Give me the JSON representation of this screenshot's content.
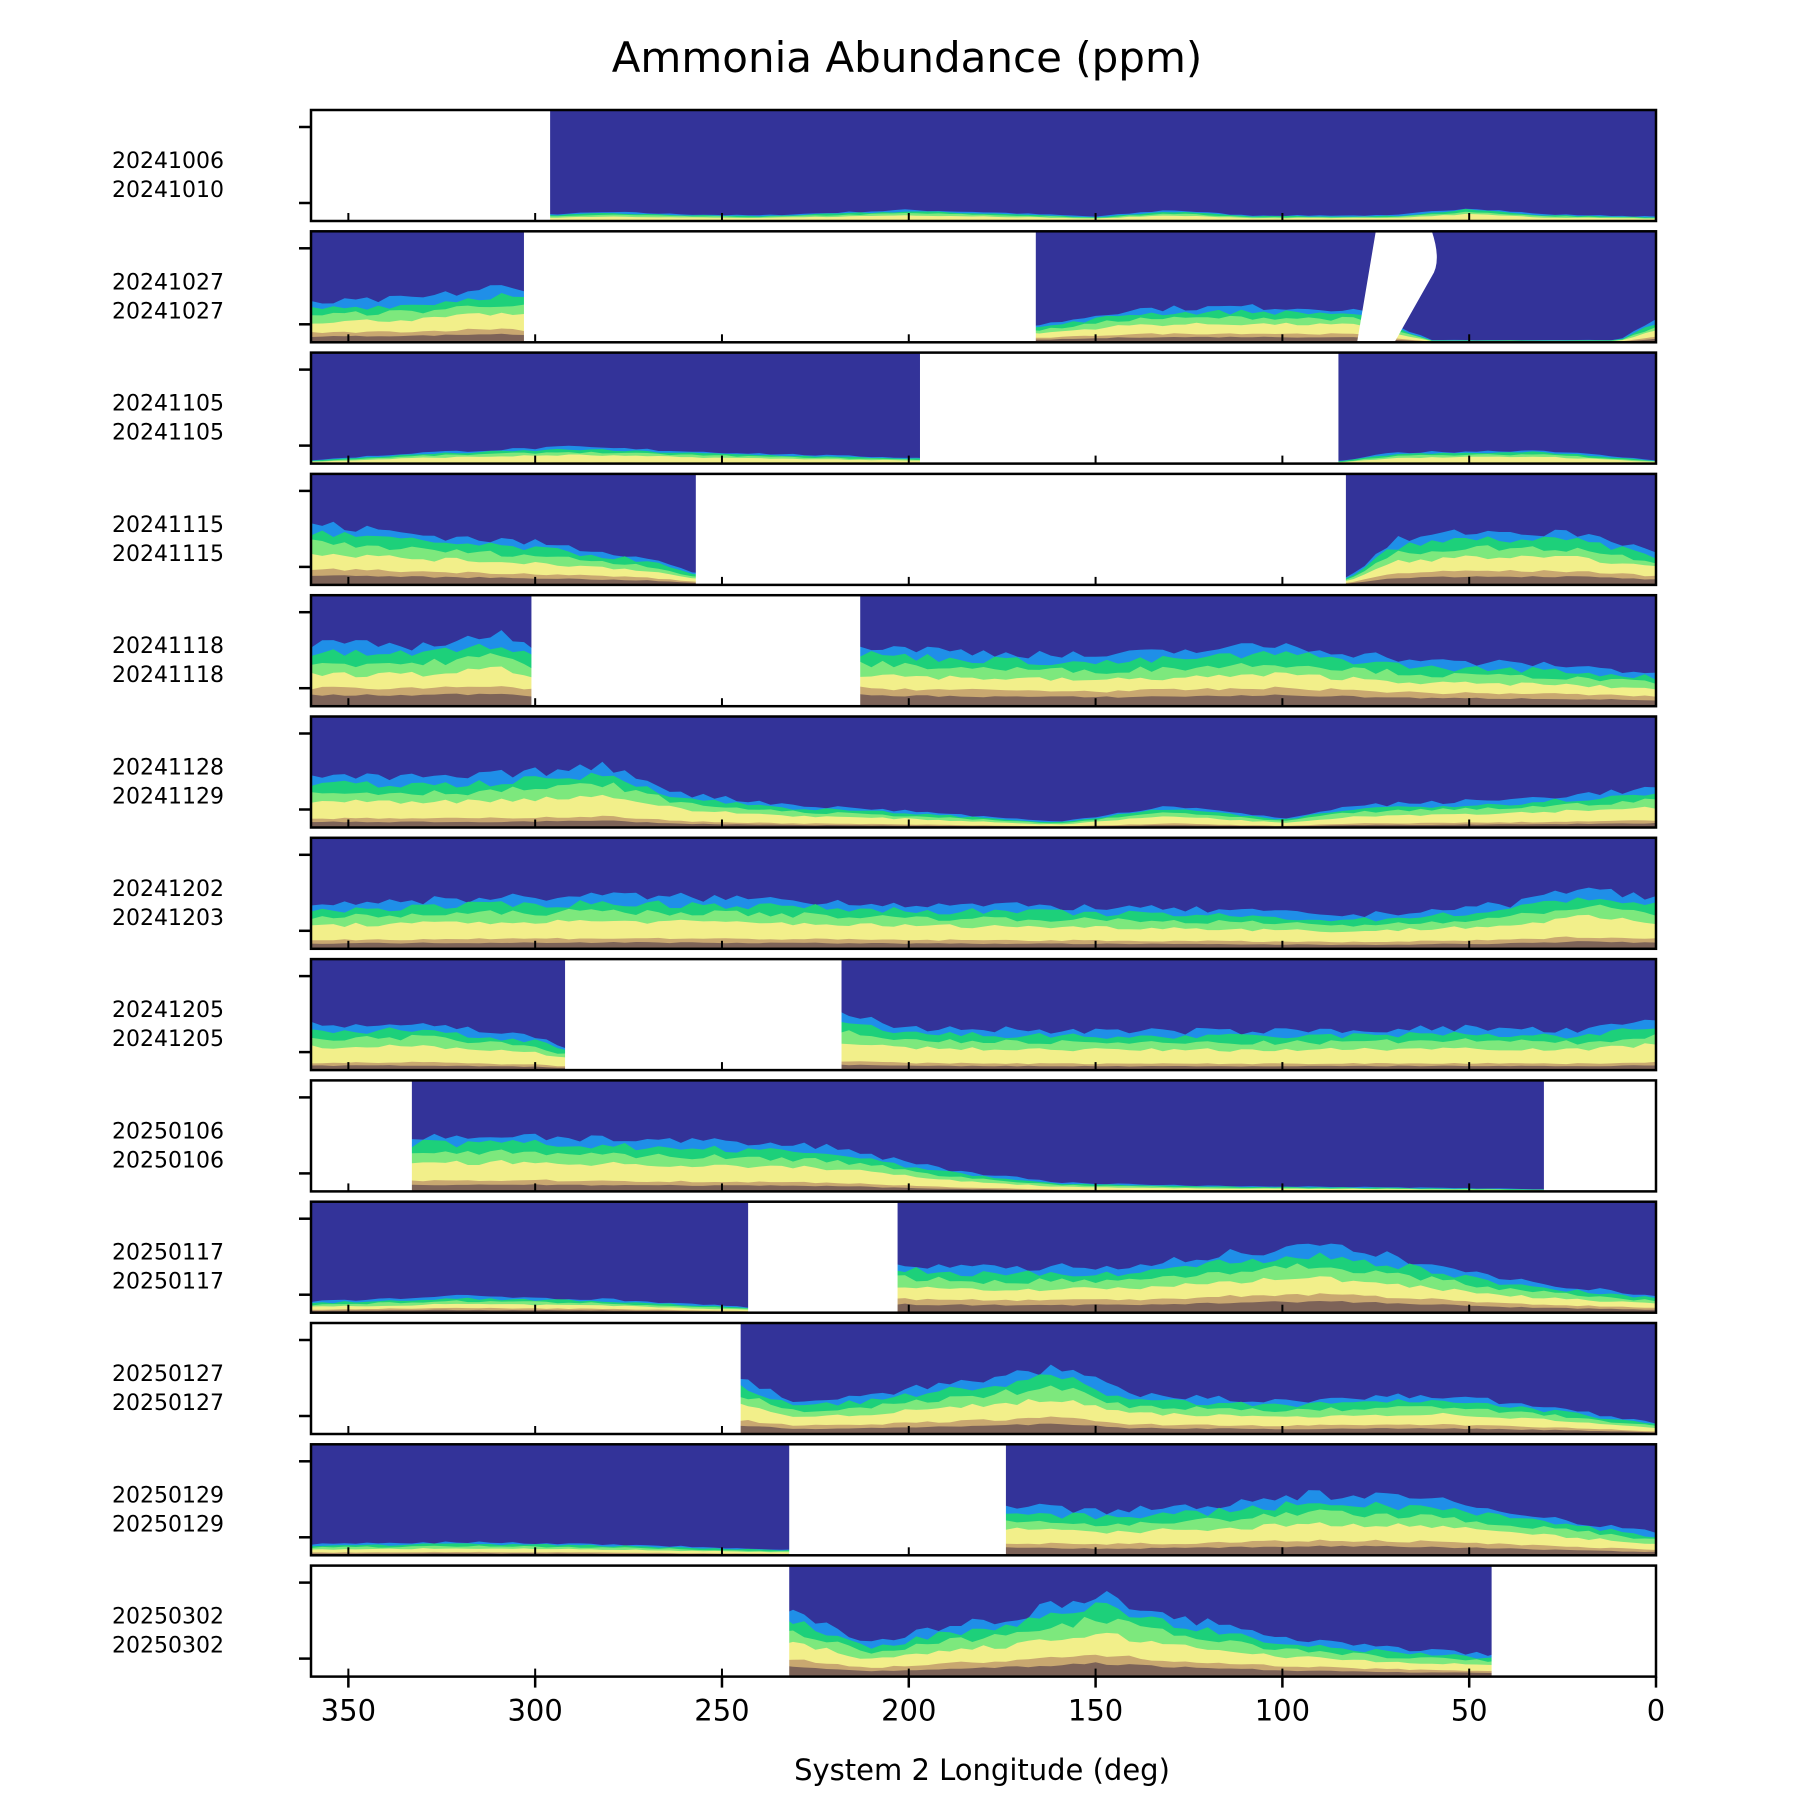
{
  "chart_data": {
    "type": "heatmap",
    "title": "Ammonia Abundance (ppm)",
    "xlabel": "System 2 Longitude (deg)",
    "xlim": [
      360,
      0
    ],
    "x_ticks": [
      350,
      300,
      250,
      200,
      150,
      100,
      50,
      0
    ],
    "x_tick_labels": [
      "350",
      "300",
      "250",
      "200",
      "150",
      "100",
      "50",
      "0"
    ],
    "colormap": [
      "#333399",
      "#1f8fe8",
      "#1dd07a",
      "#7de87d",
      "#f2ef8a",
      "#c9a870",
      "#7d6358",
      "#ffffff"
    ],
    "rows": [
      {
        "label_top": "20241006",
        "label_bottom": "20241010",
        "missing": [
          [
            360,
            296
          ]
        ],
        "gaps": [],
        "profile": [
          [
            296,
            0.06
          ],
          [
            280,
            0.08
          ],
          [
            260,
            0.06
          ],
          [
            240,
            0.05
          ],
          [
            200,
            0.1
          ],
          [
            180,
            0.08
          ],
          [
            150,
            0.04
          ],
          [
            130,
            0.1
          ],
          [
            110,
            0.05
          ],
          [
            70,
            0.05
          ],
          [
            50,
            0.12
          ],
          [
            30,
            0.06
          ],
          [
            0,
            0.04
          ]
        ],
        "intensity": 0.25
      },
      {
        "label_top": "20241027",
        "label_bottom": "20241027",
        "missing": [
          [
            303,
            166
          ]
        ],
        "gaps": [
          [
            80,
            60
          ]
        ],
        "profile": [
          [
            360,
            0.35
          ],
          [
            330,
            0.4
          ],
          [
            310,
            0.5
          ],
          [
            303,
            0.45
          ],
          [
            166,
            0.15
          ],
          [
            140,
            0.3
          ],
          [
            110,
            0.32
          ],
          [
            81,
            0.3
          ],
          [
            60,
            0.02
          ],
          [
            10,
            0.02
          ],
          [
            0,
            0.2
          ]
        ],
        "intensity": 0.75
      },
      {
        "label_top": "20241105",
        "label_bottom": "20241105",
        "missing": [
          [
            197,
            85
          ]
        ],
        "gaps": [],
        "profile": [
          [
            360,
            0.03
          ],
          [
            330,
            0.1
          ],
          [
            290,
            0.15
          ],
          [
            250,
            0.1
          ],
          [
            197,
            0.05
          ],
          [
            85,
            0.02
          ],
          [
            70,
            0.1
          ],
          [
            30,
            0.12
          ],
          [
            0,
            0.03
          ]
        ],
        "intensity": 0.22
      },
      {
        "label_top": "20241115",
        "label_bottom": "20241115",
        "missing": [
          [
            257,
            83
          ]
        ],
        "gaps": [],
        "profile": [
          [
            360,
            0.55
          ],
          [
            330,
            0.45
          ],
          [
            300,
            0.38
          ],
          [
            270,
            0.25
          ],
          [
            257,
            0.1
          ],
          [
            83,
            0.05
          ],
          [
            70,
            0.4
          ],
          [
            50,
            0.48
          ],
          [
            20,
            0.46
          ],
          [
            0,
            0.3
          ]
        ],
        "intensity": 0.8
      },
      {
        "label_top": "20241118",
        "label_bottom": "20241118",
        "missing": [
          [
            301,
            213
          ]
        ],
        "gaps": [],
        "profile": [
          [
            360,
            0.55
          ],
          [
            330,
            0.55
          ],
          [
            310,
            0.65
          ],
          [
            301,
            0.5
          ],
          [
            213,
            0.55
          ],
          [
            190,
            0.5
          ],
          [
            150,
            0.45
          ],
          [
            100,
            0.55
          ],
          [
            60,
            0.4
          ],
          [
            30,
            0.38
          ],
          [
            0,
            0.3
          ]
        ],
        "intensity": 0.9
      },
      {
        "label_top": "20241128",
        "label_bottom": "20241129",
        "missing": [],
        "gaps": [],
        "profile": [
          [
            360,
            0.45
          ],
          [
            320,
            0.45
          ],
          [
            280,
            0.55
          ],
          [
            260,
            0.3
          ],
          [
            230,
            0.2
          ],
          [
            200,
            0.15
          ],
          [
            160,
            0.05
          ],
          [
            130,
            0.2
          ],
          [
            100,
            0.08
          ],
          [
            80,
            0.2
          ],
          [
            40,
            0.25
          ],
          [
            0,
            0.35
          ]
        ],
        "intensity": 0.55
      },
      {
        "label_top": "20241202",
        "label_bottom": "20241203",
        "missing": [],
        "gaps": [],
        "profile": [
          [
            360,
            0.4
          ],
          [
            320,
            0.45
          ],
          [
            280,
            0.48
          ],
          [
            240,
            0.45
          ],
          [
            200,
            0.4
          ],
          [
            160,
            0.38
          ],
          [
            120,
            0.35
          ],
          [
            80,
            0.3
          ],
          [
            40,
            0.4
          ],
          [
            20,
            0.55
          ],
          [
            0,
            0.45
          ]
        ],
        "intensity": 0.6
      },
      {
        "label_top": "20241205",
        "label_bottom": "20241205",
        "missing": [
          [
            292,
            218
          ]
        ],
        "gaps": [],
        "profile": [
          [
            360,
            0.4
          ],
          [
            330,
            0.42
          ],
          [
            300,
            0.3
          ],
          [
            292,
            0.2
          ],
          [
            218,
            0.5
          ],
          [
            200,
            0.38
          ],
          [
            150,
            0.35
          ],
          [
            100,
            0.35
          ],
          [
            50,
            0.38
          ],
          [
            20,
            0.35
          ],
          [
            0,
            0.45
          ]
        ],
        "intensity": 0.5
      },
      {
        "label_top": "20250106",
        "label_bottom": "20250106",
        "missing": [
          [
            360,
            333
          ],
          [
            30,
            0
          ]
        ],
        "gaps": [],
        "profile": [
          [
            333,
            0.5
          ],
          [
            300,
            0.5
          ],
          [
            260,
            0.45
          ],
          [
            220,
            0.4
          ],
          [
            190,
            0.2
          ],
          [
            160,
            0.08
          ],
          [
            120,
            0.05
          ],
          [
            80,
            0.04
          ],
          [
            30,
            0.02
          ]
        ],
        "intensity": 0.6
      },
      {
        "label_top": "20250117",
        "label_bottom": "20250117",
        "missing": [
          [
            243,
            203
          ]
        ],
        "gaps": [],
        "profile": [
          [
            360,
            0.1
          ],
          [
            320,
            0.15
          ],
          [
            280,
            0.12
          ],
          [
            243,
            0.05
          ],
          [
            203,
            0.45
          ],
          [
            180,
            0.4
          ],
          [
            140,
            0.42
          ],
          [
            110,
            0.55
          ],
          [
            90,
            0.6
          ],
          [
            70,
            0.5
          ],
          [
            40,
            0.3
          ],
          [
            0,
            0.15
          ]
        ],
        "intensity": 0.85
      },
      {
        "label_top": "20250127",
        "label_bottom": "20250127",
        "missing": [
          [
            360,
            245
          ]
        ],
        "gaps": [],
        "profile": [
          [
            245,
            0.5
          ],
          [
            230,
            0.3
          ],
          [
            210,
            0.35
          ],
          [
            190,
            0.45
          ],
          [
            160,
            0.6
          ],
          [
            140,
            0.35
          ],
          [
            100,
            0.3
          ],
          [
            60,
            0.35
          ],
          [
            30,
            0.25
          ],
          [
            0,
            0.1
          ]
        ],
        "intensity": 0.75
      },
      {
        "label_top": "20250129",
        "label_bottom": "20250129",
        "missing": [
          [
            232,
            174
          ]
        ],
        "gaps": [],
        "profile": [
          [
            360,
            0.1
          ],
          [
            320,
            0.12
          ],
          [
            280,
            0.1
          ],
          [
            232,
            0.05
          ],
          [
            174,
            0.45
          ],
          [
            150,
            0.4
          ],
          [
            120,
            0.45
          ],
          [
            90,
            0.55
          ],
          [
            60,
            0.5
          ],
          [
            30,
            0.35
          ],
          [
            0,
            0.2
          ]
        ],
        "intensity": 0.75
      },
      {
        "label_top": "20250302",
        "label_bottom": "20250302",
        "missing": [
          [
            360,
            232
          ],
          [
            44,
            0
          ]
        ],
        "gaps": [],
        "profile": [
          [
            232,
            0.6
          ],
          [
            210,
            0.3
          ],
          [
            190,
            0.45
          ],
          [
            170,
            0.55
          ],
          [
            150,
            0.75
          ],
          [
            130,
            0.55
          ],
          [
            100,
            0.35
          ],
          [
            70,
            0.25
          ],
          [
            44,
            0.2
          ]
        ],
        "intensity": 0.8
      }
    ]
  }
}
